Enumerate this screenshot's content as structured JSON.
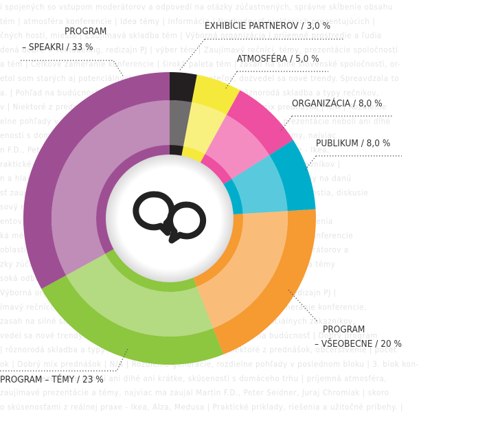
{
  "chart_data": {
    "type": "donut",
    "categories": [
      "EXHIBÍCIE PARTNEROV",
      "ATMOSFÉRA",
      "ORGANIZÁCIA",
      "PUBLIKUM",
      "PROGRAM – VŠEOBECNE",
      "PROGRAM – TÉMY",
      "PROGRAM – SPEAKRI"
    ],
    "values": [
      3,
      5,
      8,
      8,
      20,
      23,
      33
    ],
    "value_labels": [
      [
        "EXHIBÍCIE PARTNEROV / 3,0 %"
      ],
      [
        "ATMOSFÉRA / 5,0 %"
      ],
      [
        "ORGANIZÁCIA / 8,0 %"
      ],
      [
        "PUBLIKUM / 8,0 %"
      ],
      [
        "PROGRAM",
        "– VŠEOBECNE / 20 %"
      ],
      [
        "PROGRAM – TÉMY / 23 %"
      ],
      [
        "PROGRAM",
        "– SPEAKRI / 33 %"
      ]
    ],
    "colors": [
      "#231f20",
      "#f5ea3b",
      "#ee4fa0",
      "#00aecb",
      "#f69a32",
      "#8dc63f",
      "#9e4f93"
    ],
    "background_text": [
      "i spojených so vstupom moderátorov a odpovedí na otázky zúčastnených, správne skĺbenie obsahu",
      "tém | atmosféra konferencie | Idea témy | Informácia | Nevhodnosť niektorých prezentujúcich |",
      "čných hostí, miesto | Zaujímavá skladba tém | Výborná organizácia | príjemné prostredie a ľudia",
      "dená dobre + remodeling, redizajn PJ | výber tém | Zaujímavý rečníci, témy, prezentácie spoločností",
      "a tém | Celkové zameranie konferencie | široká paleta tém | zasah na silné slovenské spoločnosti, or-",
      "etol som starých aj potenciálnych zákazníkov, dodávateľov, dozvedel sa nové trendy. Spreavdzala to",
      "a. | Pohľad na budúcnosť | Dobrý program | Výber rečníkov | rôznorodá skladba a typy rečníkov,",
      "v | Niektoré z prednášok, občerstvenie | počet prednášok | Dobrý mix prednášok | N/A | Rozdielne",
      "elne pohľady v poslednom bloku | 3. blok konferencie - časový rozvrh - prezentácie neboli ani dlhé",
      "enosti s domácého trhu | príjemná atmosféra, zaujímavé prezentácie a témy, najviac",
      "n F.D., Peter Seidner, Juraj Chromiak | skoro so skúsenosťami z reálnej praxe - Ikea,",
      "raktické príklady, riešenia a užitočné príbehy. | Dobrý výber rečníkov a návštevníkov |",
      "n a hlavne spoločností, ktoré sa prezentovali, vedeli priniesť zaujímavé pohľady na danú",
      "sť zaujímavých tém, pohľady z rôznych uhlov | rôzne východiská | zahraniční hostia, diskusie",
      "sový rozvrh konferencie bol dodržaný, najmä časť konferencie, ktorá sa niesla",
      "entov, príklady z praxe, ktoré boli inšpiratívne | Prezentácie dodávateľov zariadenia",
      "ká média z oblasti pohostinstva a gastronómie zo Slovenska a Čiech. | obsah konferencie",
      "oblasti pohostinstva | Sprievodné akcie a diskusie spojených so vstupom moderátorov a",
      "zky zúčastnených, správne skĺbenie obsahu tém | atmosféra konferencie | Idea témy",
      "soká odbornosť zahraničných hostí, miesto | Zaujímavá skladba",
      "Výborná organizácia | príjemné prostredie | vedená dobre + remodeling, redizajn PJ |",
      "ímavý rečníci, témy, prezentácie spoločností | výber a tém | Celkové zameranie konferencie,",
      "zasah na silné slovenské spoločnosti, oslovil som a stretol som potenciálnych zákazníkov,",
      "vedel sa nové trendy. Spreavdzala to skvelá atmosféra. | Pohľad na budúcnosť | Dobrý program",
      "| rôznorodá skladba a typy rečníkov, kvalita príspevkov | Niektoré z prednášok, občerstvenie | počet",
      "ok | Dobrý mix prednášok | N/A | Rozdielne generácie, rozdielne pohľady v poslednom bloku | 3. blok kon-",
      "rozvrh - prezentácie neboli ani dlhé ani krátke, skúsenosti s domáceho trhu | príjemná atmosféra,",
      "zaujímavé prezentácie a témy, najviac ma zaujal Martin F.D., Peter Seidner, Juraj Chromiak | skoro",
      "o skúsenosťami z reálnej praxe - Ikea, Alza, Medusa | Praktické príklady, riešenia a užitočné príbehy. |"
    ]
  }
}
